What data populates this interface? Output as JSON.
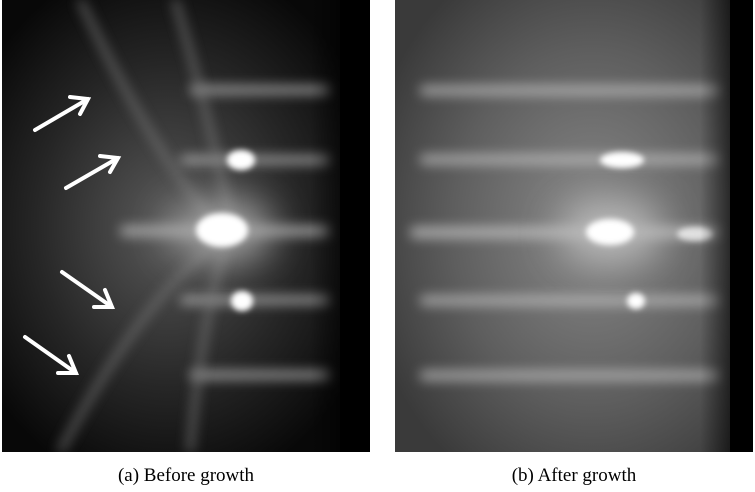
{
  "panels": [
    {
      "caption": "(a) Before growth"
    },
    {
      "caption": "(b) After growth"
    }
  ]
}
